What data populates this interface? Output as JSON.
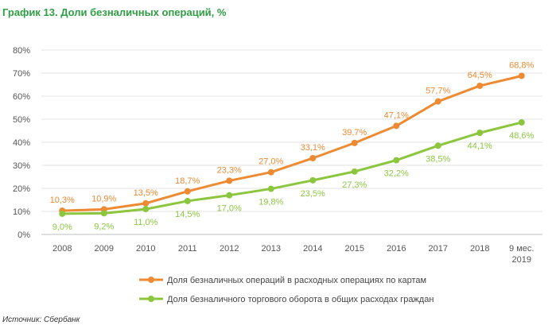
{
  "title": "График 13. Доли безналичных операций, %",
  "source": "Источник: Сбербанк",
  "chart_data": {
    "type": "line",
    "categories": [
      "2008",
      "2009",
      "2010",
      "2011",
      "2012",
      "2013",
      "2014",
      "2015",
      "2016",
      "2017",
      "2018",
      "9 мес. 2019"
    ],
    "ylim": [
      0,
      80
    ],
    "yticks": [
      "0%",
      "10%",
      "20%",
      "30%",
      "40%",
      "50%",
      "60%",
      "70%",
      "80%"
    ],
    "grid": true,
    "legend_position": "bottom",
    "series": [
      {
        "name": "Доля безналичных операций в расходных операциях по картам",
        "color": "#ed8a32",
        "values": [
          10.3,
          10.9,
          13.5,
          18.7,
          23.3,
          27.0,
          33.1,
          39.7,
          47.1,
          57.7,
          64.5,
          68.8
        ],
        "labels": [
          "10,3%",
          "10,9%",
          "13,5%",
          "18,7%",
          "23,3%",
          "27,0%",
          "33,1%",
          "39,7%",
          "47,1%",
          "57,7%",
          "64,5%",
          "68,8%"
        ],
        "label_position": "above"
      },
      {
        "name": "Доля безналичного торгового оборота в общих расходах граждан",
        "color": "#8cc63f",
        "values": [
          9.0,
          9.2,
          11.0,
          14.5,
          17.0,
          19.8,
          23.5,
          27.3,
          32.2,
          38.5,
          44.1,
          48.6
        ],
        "labels": [
          "9,0%",
          "9,2%",
          "11,0%",
          "14,5%",
          "17,0%",
          "19,8%",
          "23,5%",
          "27,3%",
          "32,2%",
          "38,5%",
          "44,1%",
          "48,6%"
        ],
        "label_position": "below"
      }
    ]
  }
}
